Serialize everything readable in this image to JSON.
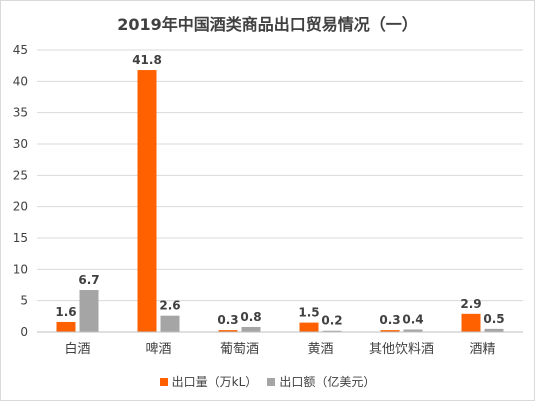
{
  "chart_data": {
    "type": "bar",
    "title": "2019年中国酒类商品出口贸易情况（一）",
    "categories": [
      "白酒",
      "啤酒",
      "葡萄酒",
      "黄酒",
      "其他饮料酒",
      "酒精"
    ],
    "series": [
      {
        "name": "出口量（万kL）",
        "color": "#ff6100",
        "values": [
          1.6,
          41.8,
          0.3,
          1.5,
          0.3,
          2.9
        ],
        "labels": [
          "1.6",
          "41.8",
          "0.3",
          "1.5",
          "0.3",
          "2.9"
        ]
      },
      {
        "name": "出口额（亿美元）",
        "color": "#a5a5a5",
        "values": [
          6.7,
          2.6,
          0.8,
          0.2,
          0.4,
          0.5
        ],
        "labels": [
          "6.7",
          "2.6",
          "0.8",
          "0.2",
          "0.4",
          "0.5"
        ]
      }
    ],
    "ylim": [
      0,
      45
    ],
    "yticks": [
      0,
      5,
      10,
      15,
      20,
      25,
      30,
      35,
      40,
      45
    ],
    "xlabel": "",
    "ylabel": "",
    "grid": true,
    "legend_position": "bottom"
  }
}
